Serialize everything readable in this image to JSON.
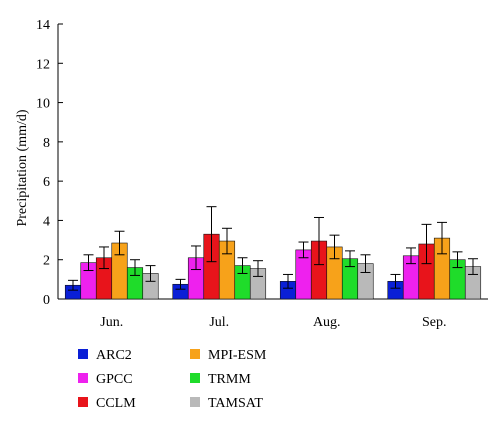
{
  "chart_data": {
    "type": "bar",
    "title": "",
    "xlabel": "",
    "ylabel": "Precipitation (mm/d)",
    "ylim": [
      0,
      14
    ],
    "yticks": [
      0,
      2,
      4,
      6,
      8,
      10,
      12,
      14
    ],
    "grid": false,
    "legend_position": "bottom-left",
    "categories": [
      "Jun.",
      "Jul.",
      "Aug.",
      "Sep."
    ],
    "series": [
      {
        "name": "ARC2",
        "color": "#0a1fd6",
        "values": [
          0.7,
          0.75,
          0.9,
          0.9
        ],
        "errors": [
          0.25,
          0.25,
          0.35,
          0.35
        ]
      },
      {
        "name": "GPCC",
        "color": "#ee21ee",
        "values": [
          1.85,
          2.1,
          2.5,
          2.2
        ],
        "errors": [
          0.4,
          0.6,
          0.4,
          0.4
        ]
      },
      {
        "name": "CCLM",
        "color": "#e8141b",
        "values": [
          2.1,
          3.3,
          2.95,
          2.8
        ],
        "errors": [
          0.55,
          1.4,
          1.2,
          1.0
        ]
      },
      {
        "name": "MPI-ESM",
        "color": "#f7a21a",
        "values": [
          2.85,
          2.95,
          2.65,
          3.1
        ],
        "errors": [
          0.6,
          0.65,
          0.6,
          0.8
        ]
      },
      {
        "name": "TRMM",
        "color": "#1fdc2a",
        "values": [
          1.6,
          1.7,
          2.05,
          2.0
        ],
        "errors": [
          0.4,
          0.4,
          0.4,
          0.4
        ]
      },
      {
        "name": "TAMSAT",
        "color": "#b9b9b9",
        "values": [
          1.3,
          1.55,
          1.8,
          1.65
        ],
        "errors": [
          0.4,
          0.4,
          0.45,
          0.4
        ]
      }
    ]
  }
}
